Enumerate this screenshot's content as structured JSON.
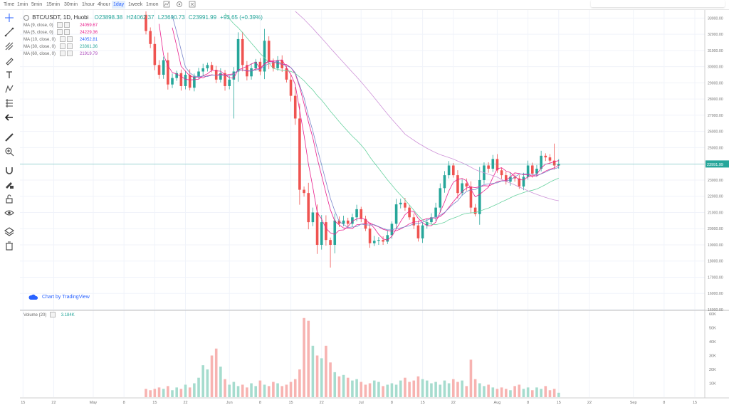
{
  "toolbar": {
    "timeframes": [
      "Time",
      "1min",
      "5min",
      "15min",
      "30min",
      "1hour",
      "4hour",
      "1day",
      "1week",
      "1mon"
    ],
    "active": "1day",
    "icons": [
      "chart-type-icon",
      "settings-icon",
      "fullscreen-icon"
    ]
  },
  "left_tools": [
    "crosshair-icon",
    "trend-line-icon",
    "pitchfork-icon",
    "brush-icon",
    "text-icon",
    "pattern-icon",
    "prediction-icon",
    "arrow-icon",
    "ruler-icon",
    "zoom-icon",
    "magnet-icon",
    "lock-drawings-icon",
    "lock-icon",
    "eye-icon",
    "layers-icon",
    "trash-icon"
  ],
  "header": {
    "symbol": "BTC/USDT, 1D, Huobi",
    "open": "O23898.38",
    "high": "H24062.37",
    "low": "L23690.73",
    "close": "C23991.99",
    "change": "+93.65 (+0.39%)"
  },
  "legend": [
    {
      "label": "MA (9, close, 0)",
      "value": "24059.67",
      "color": "#e91e8c"
    },
    {
      "label": "MA (5, close, 0)",
      "value": "24229.36",
      "color": "#e91e8c"
    },
    {
      "label": "MA (10, close, 0)",
      "value": "24052.81",
      "color": "#2962ff"
    },
    {
      "label": "MA (30, close, 0)",
      "value": "23361.36",
      "color": "#26a69a"
    },
    {
      "label": "MA (60, close, 0)",
      "value": "21919.79",
      "color": "#ab47bc"
    }
  ],
  "watermark": "Chart by TradingView",
  "volume": {
    "title": "Volume (20)",
    "value": "3.184K"
  },
  "colors": {
    "up": "#26a69a",
    "down": "#ef5350",
    "up_vol": "#a6dcce",
    "down_vol": "#f7b3b1",
    "ma9": "#e91e8c",
    "ma10": "#7986cb",
    "ma30": "#69d2a0",
    "ma60": "#ce93d8",
    "last": "#26a69a"
  },
  "chart_data": {
    "type": "candlestick",
    "price_axis": {
      "ticks": [
        33000,
        32000,
        31000,
        30000,
        29000,
        28000,
        27000,
        26000,
        25000,
        24000,
        23000,
        22000,
        21000,
        20000,
        19000,
        18000,
        17000,
        16000,
        15000
      ],
      "tick_labels": [
        "33000.00",
        "32000.00",
        "31000.00",
        "30000.00",
        "29000.00",
        "28000.00",
        "27000.00",
        "26000.00",
        "25000.00",
        "24000.00",
        "23000.00",
        "22000.00",
        "21000.00",
        "20000.00",
        "19000.00",
        "18000.00",
        "17000.00",
        "16000.00",
        "15000.00"
      ],
      "range": [
        15000,
        33500
      ]
    },
    "last_price": 23991.99,
    "last_price_label": "23991.99",
    "volume_axis": {
      "ticks": [
        60000,
        50000,
        40000,
        30000,
        20000,
        10000
      ],
      "tick_labels": [
        "60K",
        "50K",
        "40K",
        "30K",
        "20K",
        "10K"
      ],
      "range": [
        0,
        62000
      ]
    },
    "x_axis": {
      "labels": [
        "15",
        "22",
        "May",
        "8",
        "15",
        "22",
        "Jun",
        "8",
        "15",
        "22",
        "Jul",
        "8",
        "15",
        "22",
        "Aug",
        "8",
        "15",
        "22",
        "Sep",
        "8",
        "15"
      ],
      "label_day_index": [
        -16,
        -9,
        0,
        7,
        14,
        21,
        31,
        38,
        45,
        52,
        61,
        68,
        75,
        82,
        92,
        99,
        106,
        113,
        123,
        130,
        137
      ]
    },
    "candles_start_day": 12,
    "closes": [
      32200,
      31400,
      30100,
      29500,
      30400,
      28900,
      29300,
      29600,
      28800,
      29500,
      28700,
      29400,
      29700,
      29900,
      30100,
      29800,
      29200,
      29600,
      28800,
      29200,
      29700,
      31700,
      30100,
      29400,
      29900,
      30300,
      29700,
      31600,
      30300,
      29900,
      30400,
      29900,
      29200,
      28200,
      26800,
      22400,
      22200,
      20400,
      21000,
      19000,
      20400,
      19300,
      19000,
      20500,
      20300,
      20500,
      20300,
      20700,
      21200,
      20600,
      20000,
      19100,
      19250,
      19300,
      19200,
      19600,
      20300,
      21500,
      21600,
      21300,
      20700,
      20200,
      19400,
      20200,
      20400,
      20700,
      21300,
      22500,
      23300,
      23900,
      23300,
      22200,
      22800,
      22600,
      21300,
      20900,
      23000,
      23900,
      23700,
      24300,
      23600,
      23300,
      22900,
      23200,
      23100,
      22600,
      23200,
      23900,
      23400,
      23700,
      24500,
      24400,
      24200,
      23898,
      23992
    ],
    "candles_ohlc_note": "Open of each candle equals previous close",
    "volumes_thousands": [
      6,
      5,
      6,
      7,
      6,
      8,
      5,
      7,
      6,
      9,
      7,
      10,
      14,
      23,
      20,
      30,
      35,
      22,
      13,
      9,
      11,
      8,
      9,
      7,
      10,
      8,
      12,
      9,
      8,
      11,
      10,
      8,
      9,
      11,
      13,
      20,
      57,
      55,
      37,
      30,
      28,
      37,
      25,
      18,
      15,
      16,
      14,
      12,
      13,
      11,
      9,
      10,
      12,
      11,
      8,
      9,
      10,
      9,
      12,
      14,
      11,
      12,
      15,
      13,
      12,
      10,
      11,
      9,
      12,
      10,
      13,
      11,
      12,
      8,
      27,
      13,
      10,
      8,
      9,
      7,
      6,
      7,
      6,
      5,
      8,
      9,
      6,
      7,
      5,
      7,
      6,
      8,
      5,
      6,
      3.184
    ]
  }
}
